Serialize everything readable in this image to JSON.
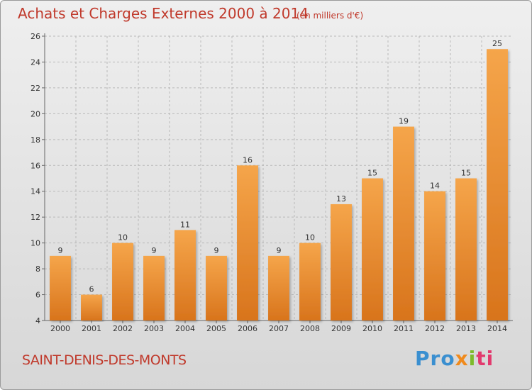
{
  "header": {
    "title": "Achats et Charges Externes 2000 à 2014",
    "subtitle": "(en milliers d'€)"
  },
  "footer": {
    "commune": "SAINT-DENIS-DES-MONTS",
    "logo_parts": [
      "Pro",
      "x",
      "i",
      "ti"
    ]
  },
  "colors": {
    "bar_top": "#f5a54a",
    "bar_bottom": "#d8741c",
    "title": "#c0392b"
  },
  "chart_data": {
    "type": "bar",
    "title": "Achats et Charges Externes 2000 à 2014",
    "subtitle": "(en milliers d'€)",
    "categories": [
      "2000",
      "2001",
      "2002",
      "2003",
      "2004",
      "2005",
      "2006",
      "2007",
      "2008",
      "2009",
      "2010",
      "2011",
      "2012",
      "2013",
      "2014"
    ],
    "values": [
      9,
      6,
      10,
      9,
      11,
      9,
      16,
      9,
      10,
      13,
      15,
      19,
      14,
      15,
      25
    ],
    "ylim": [
      4,
      26
    ],
    "yticks": [
      4,
      6,
      8,
      10,
      12,
      14,
      16,
      18,
      20,
      22,
      24,
      26
    ],
    "grid": true,
    "legend": "none"
  }
}
